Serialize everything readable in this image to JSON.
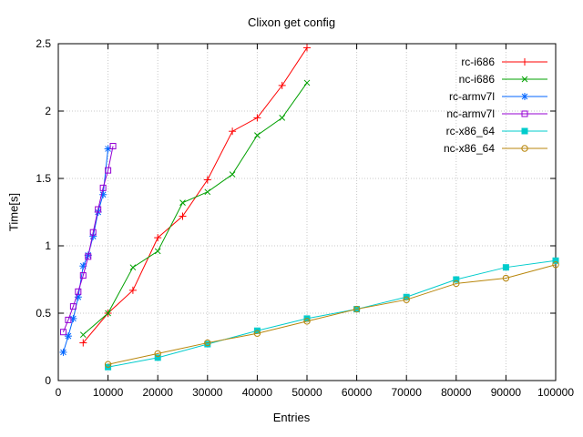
{
  "chart_data": {
    "type": "line",
    "title": "Clixon get config",
    "xlabel": "Entries",
    "ylabel": "Time[s]",
    "xlim": [
      0,
      100000
    ],
    "ylim": [
      0,
      2.5
    ],
    "xticks": [
      0,
      10000,
      20000,
      30000,
      40000,
      50000,
      60000,
      70000,
      80000,
      90000,
      100000
    ],
    "yticks": [
      0,
      0.5,
      1,
      1.5,
      2,
      2.5
    ],
    "grid": true,
    "legend_position": "top-right-inside",
    "axis_color": "#000000",
    "grid_color": "#c8c8c8",
    "series": [
      {
        "name": "rc-i686",
        "color": "#ff0000",
        "marker": "plus",
        "x": [
          5000,
          10000,
          15000,
          20000,
          25000,
          30000,
          35000,
          40000,
          45000,
          50000
        ],
        "y": [
          0.28,
          0.5,
          0.67,
          1.06,
          1.22,
          1.49,
          1.85,
          1.95,
          2.19,
          2.47
        ]
      },
      {
        "name": "nc-i686",
        "color": "#00a000",
        "marker": "cross",
        "x": [
          5000,
          10000,
          15000,
          20000,
          25000,
          30000,
          35000,
          40000,
          45000,
          50000
        ],
        "y": [
          0.34,
          0.5,
          0.84,
          0.96,
          1.32,
          1.4,
          1.53,
          1.82,
          1.95,
          2.21
        ]
      },
      {
        "name": "rc-armv7l",
        "color": "#0066ff",
        "marker": "asterisk",
        "x": [
          1000,
          2000,
          3000,
          4000,
          5000,
          6000,
          7000,
          8000,
          9000,
          10000
        ],
        "y": [
          0.21,
          0.33,
          0.46,
          0.62,
          0.85,
          0.93,
          1.07,
          1.25,
          1.38,
          1.72
        ]
      },
      {
        "name": "nc-armv7l",
        "color": "#9400d3",
        "marker": "square-open",
        "x": [
          1000,
          2000,
          3000,
          4000,
          5000,
          6000,
          7000,
          8000,
          9000,
          10000,
          11000
        ],
        "y": [
          0.36,
          0.45,
          0.55,
          0.66,
          0.78,
          0.92,
          1.1,
          1.27,
          1.43,
          1.56,
          1.74
        ]
      },
      {
        "name": "rc-x86_64",
        "color": "#00cccc",
        "marker": "square-filled",
        "x": [
          10000,
          20000,
          30000,
          40000,
          50000,
          60000,
          70000,
          80000,
          90000,
          100000
        ],
        "y": [
          0.1,
          0.17,
          0.27,
          0.37,
          0.46,
          0.53,
          0.62,
          0.75,
          0.84,
          0.89
        ]
      },
      {
        "name": "nc-x86_64",
        "color": "#b8860b",
        "marker": "circle-open",
        "x": [
          10000,
          20000,
          30000,
          40000,
          50000,
          60000,
          70000,
          80000,
          90000,
          100000
        ],
        "y": [
          0.12,
          0.2,
          0.28,
          0.35,
          0.44,
          0.53,
          0.6,
          0.72,
          0.76,
          0.86
        ]
      }
    ]
  }
}
